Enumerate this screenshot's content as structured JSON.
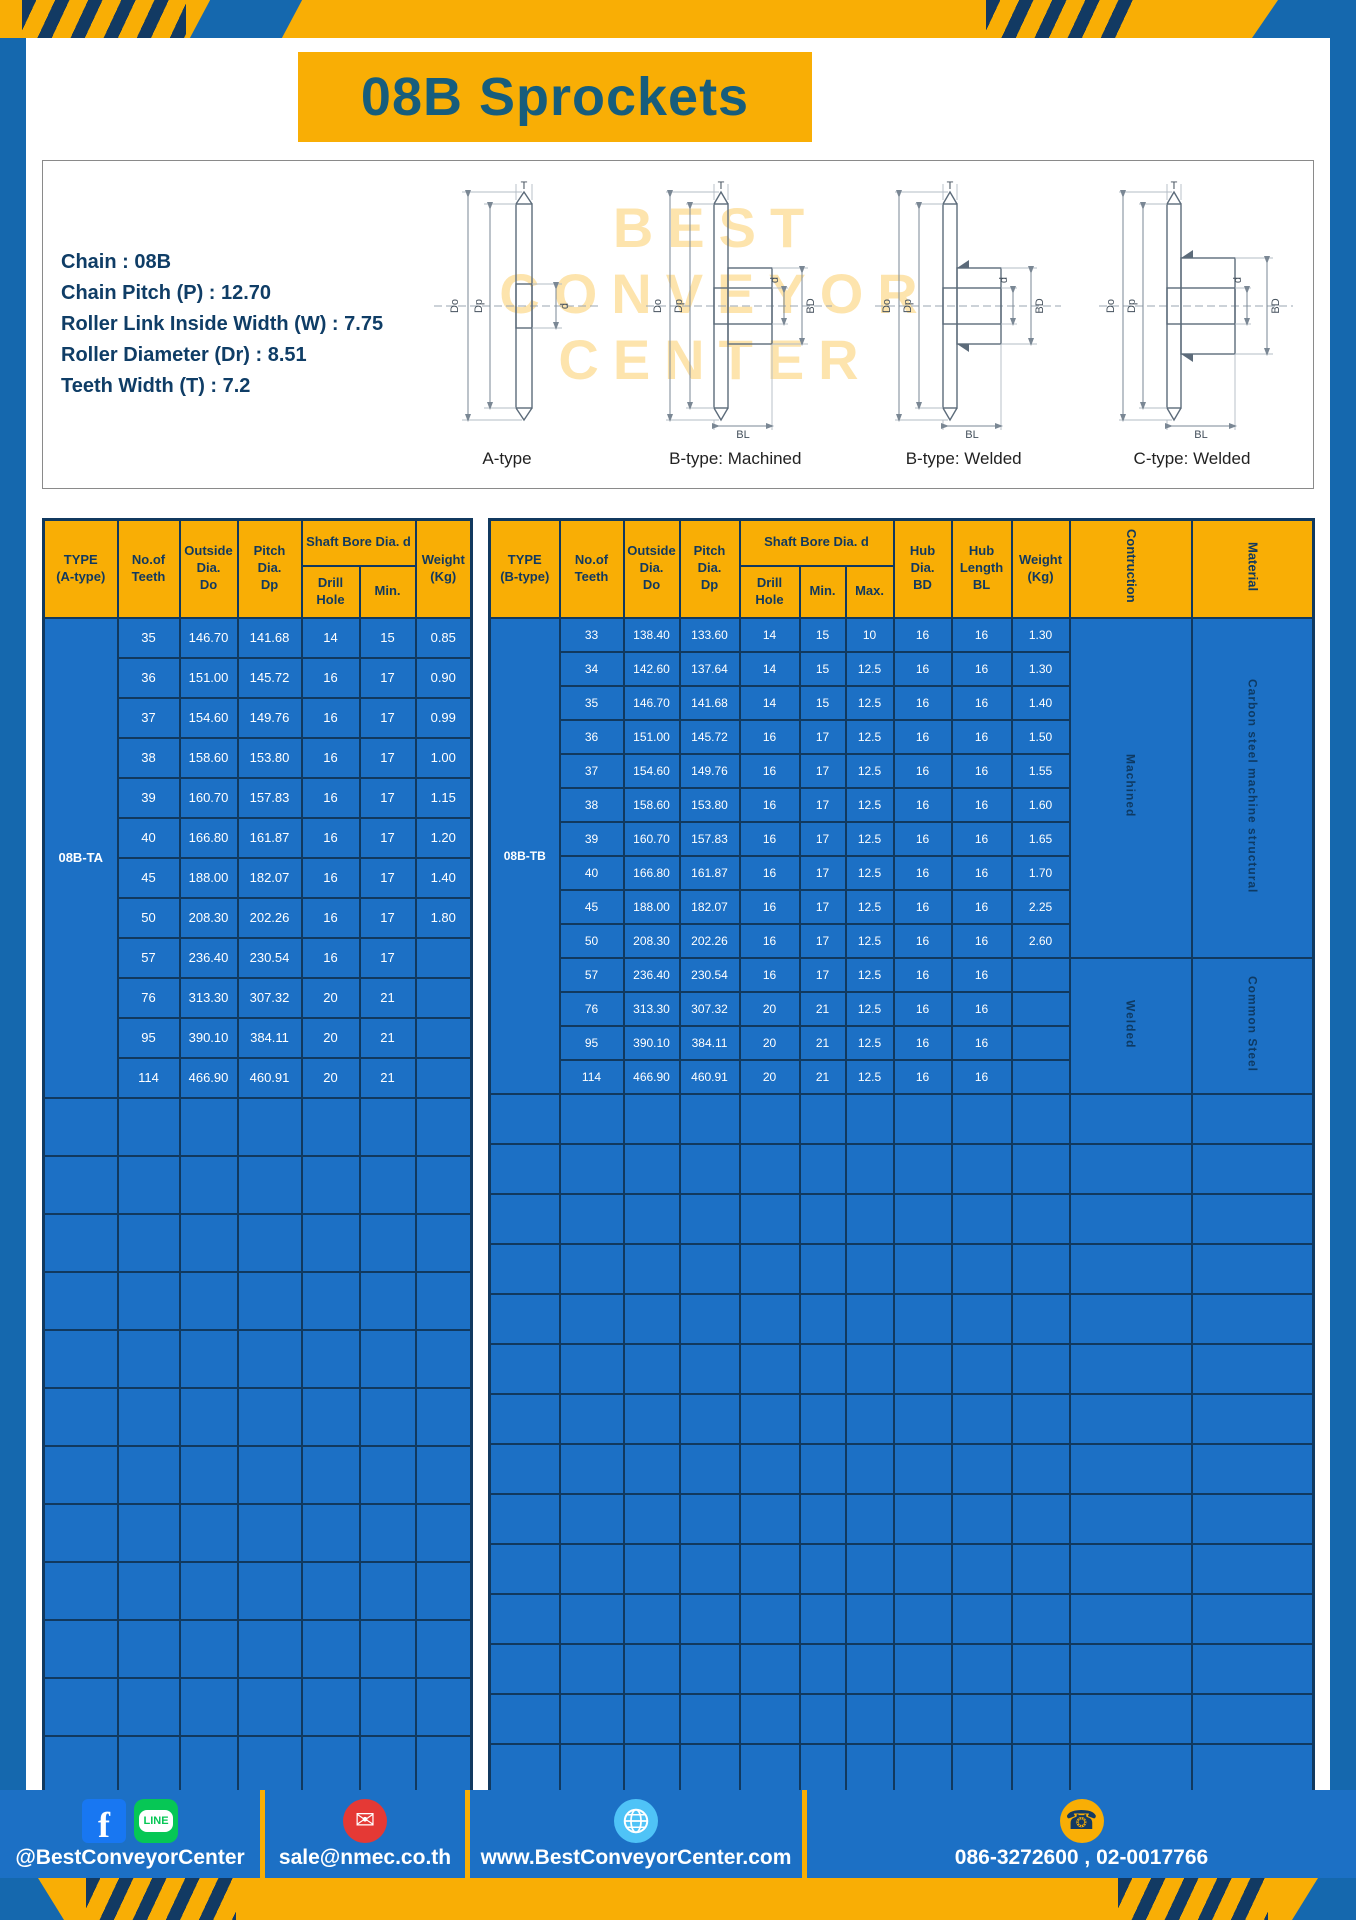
{
  "page": {
    "title": "08B Sprockets"
  },
  "specs": {
    "lines": [
      "Chain : 08B",
      "Chain Pitch (P) : 12.70",
      "Roller Link Inside Width (W) : 7.75",
      "Roller Diameter (Dr) : 8.51",
      "Teeth Width (T) : 7.2"
    ]
  },
  "diagram": {
    "labels": [
      "A-type",
      "B-type: Machined",
      "B-type: Welded",
      "C-type: Welded"
    ],
    "dims": {
      "t": "T",
      "do": "Do",
      "dp": "Dp",
      "d": "d",
      "bl": "BL",
      "bd": "BD"
    },
    "watermark": [
      "BEST",
      "CONVEYOR",
      "CENTER"
    ]
  },
  "tables": {
    "a_type": {
      "type_label": "08B-TA",
      "headers": {
        "type": "TYPE\n(A-type)",
        "teeth": "No.of\nTeeth",
        "outside": "Outside\nDia.\nDo",
        "pitch": "Pitch Dia.\nDp",
        "shaft_bore": "Shaft Bore Dia. d",
        "drill": "Drill Hole",
        "min": "Min.",
        "weight": "Weight\n(Kg)"
      },
      "rows": [
        [
          "35",
          "146.70",
          "141.68",
          "14",
          "15",
          "0.85"
        ],
        [
          "36",
          "151.00",
          "145.72",
          "16",
          "17",
          "0.90"
        ],
        [
          "37",
          "154.60",
          "149.76",
          "16",
          "17",
          "0.99"
        ],
        [
          "38",
          "158.60",
          "153.80",
          "16",
          "17",
          "1.00"
        ],
        [
          "39",
          "160.70",
          "157.83",
          "16",
          "17",
          "1.15"
        ],
        [
          "40",
          "166.80",
          "161.87",
          "16",
          "17",
          "1.20"
        ],
        [
          "45",
          "188.00",
          "182.07",
          "16",
          "17",
          "1.40"
        ],
        [
          "50",
          "208.30",
          "202.26",
          "16",
          "17",
          "1.80"
        ],
        [
          "57",
          "236.40",
          "230.54",
          "16",
          "17",
          ""
        ],
        [
          "76",
          "313.30",
          "307.32",
          "20",
          "21",
          ""
        ],
        [
          "95",
          "390.10",
          "384.11",
          "20",
          "21",
          ""
        ],
        [
          "114",
          "466.90",
          "460.91",
          "20",
          "21",
          ""
        ]
      ],
      "empty_rows": 12
    },
    "b_type": {
      "type_label": "08B-TB",
      "headers": {
        "type": "TYPE\n(B-type)",
        "teeth": "No.of\nTeeth",
        "outside": "Outside\nDia.\nDo",
        "pitch": "Pitch Dia.\nDp",
        "shaft_bore": "Shaft Bore Dia. d",
        "drill": "Drill Hole",
        "min": "Min.",
        "max": "Max.",
        "hub_dia": "Hub Dia.\nBD",
        "hub_length": "Hub\nLength\nBL",
        "weight": "Weight\n(Kg)",
        "construction": "Contruction",
        "material": "Material"
      },
      "rows": [
        [
          "33",
          "138.40",
          "133.60",
          "14",
          "15",
          "10",
          "16",
          "16",
          "1.30"
        ],
        [
          "34",
          "142.60",
          "137.64",
          "14",
          "15",
          "12.5",
          "16",
          "16",
          "1.30"
        ],
        [
          "35",
          "146.70",
          "141.68",
          "14",
          "15",
          "12.5",
          "16",
          "16",
          "1.40"
        ],
        [
          "36",
          "151.00",
          "145.72",
          "16",
          "17",
          "12.5",
          "16",
          "16",
          "1.50"
        ],
        [
          "37",
          "154.60",
          "149.76",
          "16",
          "17",
          "12.5",
          "16",
          "16",
          "1.55"
        ],
        [
          "38",
          "158.60",
          "153.80",
          "16",
          "17",
          "12.5",
          "16",
          "16",
          "1.60"
        ],
        [
          "39",
          "160.70",
          "157.83",
          "16",
          "17",
          "12.5",
          "16",
          "16",
          "1.65"
        ],
        [
          "40",
          "166.80",
          "161.87",
          "16",
          "17",
          "12.5",
          "16",
          "16",
          "1.70"
        ],
        [
          "45",
          "188.00",
          "182.07",
          "16",
          "17",
          "12.5",
          "16",
          "16",
          "2.25"
        ],
        [
          "50",
          "208.30",
          "202.26",
          "16",
          "17",
          "12.5",
          "16",
          "16",
          "2.60"
        ],
        [
          "57",
          "236.40",
          "230.54",
          "16",
          "17",
          "12.5",
          "16",
          "16",
          ""
        ],
        [
          "76",
          "313.30",
          "307.32",
          "20",
          "21",
          "12.5",
          "16",
          "16",
          ""
        ],
        [
          "95",
          "390.10",
          "384.11",
          "20",
          "21",
          "12.5",
          "16",
          "16",
          ""
        ],
        [
          "114",
          "466.90",
          "460.91",
          "20",
          "21",
          "12.5",
          "16",
          "16",
          ""
        ]
      ],
      "construction_groups": [
        {
          "label": "Machined",
          "rows": 10
        },
        {
          "label": "Welded",
          "rows": 4
        }
      ],
      "material_groups": [
        {
          "label": "Carbon steel machine structural",
          "rows": 10
        },
        {
          "label": "Common Steel",
          "rows": 4
        }
      ],
      "empty_rows": 14
    }
  },
  "footer": {
    "facebook_handle": "@BestConveyorCenter",
    "email": "sale@nmec.co.th",
    "website": "www.BestConveyorCenter.com",
    "phone": "086-3272600 , 02-0017766",
    "icons": {
      "facebook": "f",
      "line": "LINE",
      "email": "✉",
      "phone": "☎"
    }
  }
}
